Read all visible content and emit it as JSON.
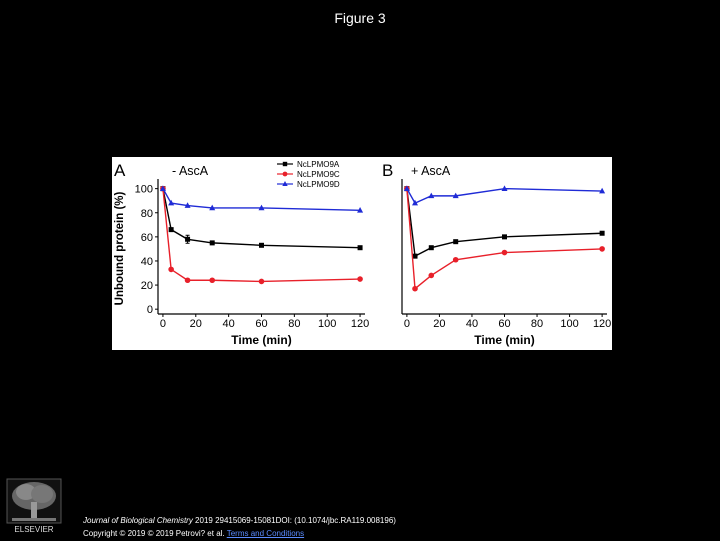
{
  "slide": {
    "title": "Figure 3"
  },
  "chart_data": [
    {
      "type": "line",
      "panel_letter": "A",
      "panel_label": "- AscA",
      "xlabel": "Time (min)",
      "ylabel": "Unbound protein (%)",
      "xlim": [
        -3,
        123
      ],
      "ylim": [
        -4,
        108
      ],
      "xticks": [
        0,
        20,
        40,
        60,
        80,
        100,
        120
      ],
      "yticks": [
        0,
        20,
        40,
        60,
        80,
        100
      ],
      "legend_position": "top-right",
      "x": [
        0,
        5,
        15,
        30,
        60,
        120
      ],
      "series": [
        {
          "name": "NcLPMO9A",
          "color": "#000000",
          "marker": "square",
          "values": [
            100,
            66,
            58,
            55,
            53,
            51
          ]
        },
        {
          "name": "NcLPMO9C",
          "color": "#e8202a",
          "marker": "circle",
          "values": [
            100,
            33,
            24,
            24,
            23,
            25
          ]
        },
        {
          "name": "NcLPMO9D",
          "color": "#1f2bd6",
          "marker": "triangle",
          "values": [
            100,
            88,
            86,
            84,
            84,
            82
          ]
        }
      ]
    },
    {
      "type": "line",
      "panel_letter": "B",
      "panel_label": "+ AscA",
      "xlabel": "Time (min)",
      "ylabel": "",
      "xlim": [
        -3,
        123
      ],
      "ylim": [
        -4,
        108
      ],
      "xticks": [
        0,
        20,
        40,
        60,
        80,
        100,
        120
      ],
      "yticks": [],
      "x": [
        0,
        5,
        15,
        30,
        60,
        120
      ],
      "series": [
        {
          "name": "NcLPMO9A",
          "color": "#000000",
          "marker": "square",
          "values": [
            100,
            44,
            51,
            56,
            60,
            63
          ]
        },
        {
          "name": "NcLPMO9C",
          "color": "#e8202a",
          "marker": "circle",
          "values": [
            100,
            17,
            28,
            41,
            47,
            50
          ]
        },
        {
          "name": "NcLPMO9D",
          "color": "#1f2bd6",
          "marker": "triangle",
          "values": [
            100,
            88,
            94,
            94,
            100,
            98
          ]
        }
      ]
    }
  ],
  "footer": {
    "journal": "Journal of Biological Chemistry",
    "citation": " 2019 29415069-15081DOI: (10.1074/jbc.RA119.008196)",
    "copyright": "Copyright © 2019 © 2019 Petrovi? et al.",
    "terms_link": "Terms and Conditions",
    "publisher": "ELSEVIER"
  }
}
